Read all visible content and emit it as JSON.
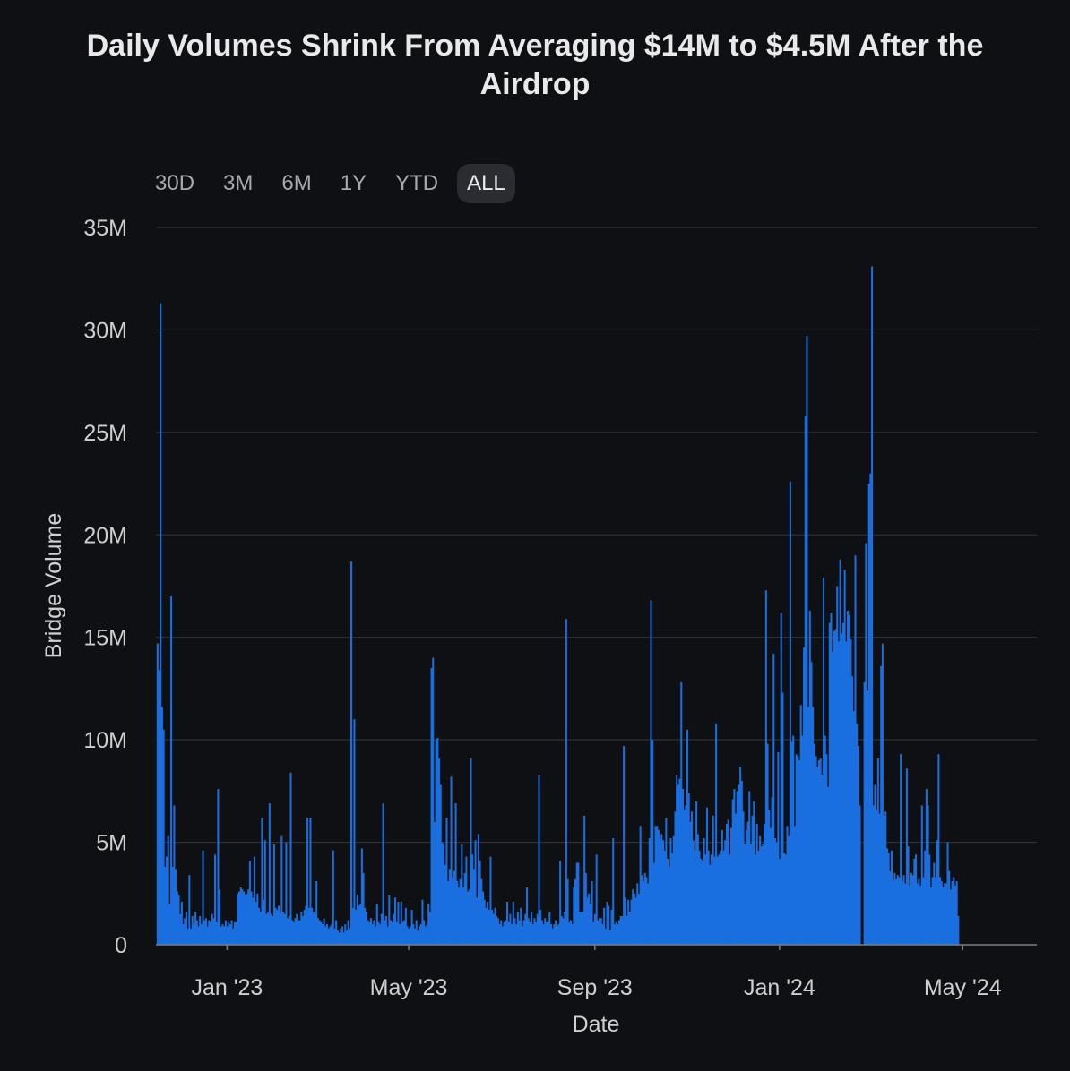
{
  "title": "Daily Volumes Shrink From Averaging $14M to $4.5M After the Airdrop",
  "range_buttons": [
    "30D",
    "3M",
    "6M",
    "1Y",
    "YTD",
    "ALL"
  ],
  "active_range": "ALL",
  "colors": {
    "background": "#0f1013",
    "bar": "#1a6fe0",
    "grid": "#2f3237"
  },
  "chart_data": {
    "type": "bar",
    "title": "Daily Volumes Shrink From Averaging $14M to $4.5M After the Airdrop",
    "xlabel": "Date",
    "ylabel": "Bridge Volume",
    "ylim": [
      0,
      35000000
    ],
    "y_ticks": [
      {
        "value": 0,
        "label": "0"
      },
      {
        "value": 5000000,
        "label": "5M"
      },
      {
        "value": 10000000,
        "label": "10M"
      },
      {
        "value": 15000000,
        "label": "15M"
      },
      {
        "value": 20000000,
        "label": "20M"
      },
      {
        "value": 25000000,
        "label": "25M"
      },
      {
        "value": 30000000,
        "label": "30M"
      },
      {
        "value": 35000000,
        "label": "35M"
      }
    ],
    "x_range": [
      "2022-11-15",
      "2024-06-19"
    ],
    "x_ticks": [
      {
        "date": "2023-01-01",
        "label": "Jan '23"
      },
      {
        "date": "2023-05-01",
        "label": "May '23"
      },
      {
        "date": "2023-09-01",
        "label": "Sep '23"
      },
      {
        "date": "2024-01-01",
        "label": "Jan '24"
      },
      {
        "date": "2024-05-01",
        "label": "May '24"
      }
    ],
    "grid": true,
    "legend": "none",
    "series": [
      {
        "start_date": "2022-11-16",
        "values_millions": [
          14.7,
          13.4,
          31.3,
          11.6,
          10.5,
          3.8,
          4.3,
          5.3,
          2.0,
          17.0,
          3.8,
          6.8,
          3.7,
          2.6,
          2.4,
          1.5,
          2.1,
          1.0,
          1.3,
          1.6,
          0.8,
          3.4,
          0.8,
          1.4,
          1.0,
          1.6,
          1.2,
          0.9,
          1.4,
          1.0,
          4.6,
          1.2,
          1.3,
          0.9,
          1.2,
          1.1,
          1.5,
          1.3,
          4.4,
          1.1,
          7.6,
          2.7,
          0.9,
          1.0,
          0.9,
          1.2,
          0.9,
          1.1,
          1.0,
          1.2,
          0.8,
          1.1,
          1.1,
          2.5,
          2.6,
          2.8,
          2.7,
          2.6,
          2.4,
          2.5,
          2.7,
          4.1,
          2.6,
          2.3,
          4.3,
          2.1,
          2.5,
          1.8,
          1.6,
          6.2,
          2.2,
          5.1,
          1.5,
          1.6,
          6.9,
          1.5,
          1.4,
          4.9,
          1.8,
          1.7,
          1.9,
          1.6,
          5.3,
          1.6,
          1.5,
          5.0,
          1.3,
          1.4,
          8.4,
          1.2,
          1.1,
          1.3,
          1.5,
          1.2,
          1.2,
          1.6,
          1.4,
          1.7,
          1.9,
          6.2,
          1.8,
          6.2,
          1.8,
          1.6,
          1.5,
          3.1,
          1.3,
          1.2,
          1.1,
          1.0,
          1.3,
          0.9,
          1.0,
          0.8,
          0.9,
          1.0,
          4.6,
          0.8,
          1.2,
          0.7,
          0.6,
          0.8,
          0.9,
          0.6,
          1.0,
          0.7,
          1.2,
          0.8,
          18.7,
          1.8,
          11.0,
          1.7,
          2.4,
          1.9,
          2.0,
          4.7,
          3.5,
          1.8,
          1.6,
          1.2,
          1.1,
          1.3,
          1.0,
          1.2,
          0.9,
          2.0,
          1.1,
          1.0,
          1.5,
          6.9,
          1.2,
          1.4,
          0.9,
          2.4,
          1.2,
          1.1,
          1.5,
          2.3,
          1.1,
          2.1,
          1.0,
          2.1,
          1.1,
          1.2,
          1.8,
          0.9,
          0.8,
          0.9,
          1.7,
          1.0,
          0.8,
          1.2,
          0.7,
          0.9,
          1.0,
          2.2,
          1.2,
          0.9,
          1.0,
          2.0,
          1.6,
          13.5,
          14.0,
          6.0,
          10.0,
          10.1,
          9.1,
          7.8,
          5.0,
          4.9,
          3.9,
          6.2,
          3.1,
          3.7,
          8.2,
          3.3,
          3.6,
          6.9,
          3.1,
          2.8,
          3.2,
          4.9,
          2.8,
          3.5,
          4.3,
          2.6,
          2.7,
          9.1,
          4.4,
          3.7,
          5.1,
          2.3,
          5.4,
          4.1,
          3.2,
          2.6,
          2.2,
          1.8,
          2.1,
          1.7,
          4.3,
          1.7,
          1.5,
          1.8,
          1.4,
          1.3,
          1.0,
          1.2,
          0.9,
          1.1,
          1.2,
          2.1,
          1.1,
          1.5,
          1.0,
          2.1,
          1.3,
          1.0,
          1.6,
          1.2,
          1.8,
          0.9,
          1.2,
          1.5,
          2.8,
          1.3,
          1.1,
          1.6,
          1.0,
          1.3,
          1.1,
          1.5,
          8.3,
          1.7,
          1.2,
          1.0,
          1.3,
          1.1,
          1.1,
          1.6,
          1.0,
          0.8,
          1.0,
          1.2,
          0.9,
          1.0,
          4.1,
          1.4,
          1.3,
          1.6,
          15.9,
          3.2,
          1.1,
          1.2,
          1.0,
          2.8,
          3.2,
          4.0,
          4.0,
          1.6,
          1.6,
          1.6,
          6.3,
          3.5,
          2.3,
          2.5,
          2.0,
          3.1,
          1.1,
          1.5,
          4.4,
          1.2,
          1.3,
          1.3,
          1.0,
          1.8,
          0.8,
          2.1,
          1.9,
          0.7,
          1.7,
          5.2,
          1.0,
          1.1,
          1.0,
          1.2,
          1.4,
          1.4,
          9.7,
          2.3,
          1.4,
          2.2,
          1.6,
          2.2,
          2.7,
          2.5,
          2.3,
          3.0,
          2.5,
          5.8,
          3.4,
          3.1,
          3.5,
          3.3,
          3.0,
          5.2,
          16.8,
          10.0,
          4.0,
          5.8,
          5.8,
          5.6,
          5.2,
          5.4,
          5.1,
          4.6,
          6.2,
          4.2,
          3.8,
          5.2,
          4.5,
          5.3,
          6.5,
          8.3,
          7.8,
          8.1,
          12.8,
          7.6,
          6.6,
          6.8,
          10.5,
          7.4,
          6.0,
          6.5,
          5.1,
          4.6,
          7.0,
          5.4,
          4.6,
          4.2,
          4.1,
          5.2,
          4.4,
          6.7,
          4.6,
          3.9,
          4.4,
          6.3,
          4.3,
          10.8,
          4.3,
          4.4,
          4.6,
          5.6,
          4.6,
          5.1,
          5.9,
          6.1,
          4.4,
          5.7,
          7.1,
          7.6,
          6.4,
          7.5,
          7.8,
          8.7,
          8.0,
          6.5,
          4.9,
          5.6,
          6.0,
          7.5,
          4.9,
          6.3,
          7.0,
          4.4,
          5.9,
          4.6,
          5.3,
          4.8,
          4.9,
          5.9,
          17.3,
          9.8,
          6.6,
          5.7,
          7.2,
          14.2,
          5.2,
          5.0,
          9.4,
          4.2,
          16.2,
          12.3,
          4.5,
          4.4,
          5.8,
          5.3,
          22.6,
          9.9,
          10.2,
          5.8,
          9.3,
          9.2,
          9.0,
          11.7,
          10.2,
          14.5,
          25.8,
          29.7,
          11.6,
          16.3,
          13.8,
          11.6,
          9.8,
          9.2,
          8.7,
          9.0,
          9.1,
          8.3,
          17.9,
          10.2,
          9.3,
          7.7,
          15.7,
          16.2,
          14.3,
          15.3,
          15.4,
          17.5,
          14.8,
          18.8,
          15.2,
          15.7,
          18.3,
          14.8,
          16.3,
          16.1,
          14.9,
          13.1,
          11.4,
          19.0,
          10.8,
          9.7,
          6.8,
          0.0,
          0.0,
          12.8,
          19.6,
          12.4,
          22.5,
          23.0,
          33.1,
          6.8,
          7.8,
          6.6,
          9.1,
          6.4,
          13.6,
          14.7,
          6.3,
          6.5,
          4.7,
          4.5,
          3.6,
          4.6,
          3.1,
          3.5,
          3.2,
          3.4,
          3.3,
          9.3,
          3.1,
          3.4,
          3.0,
          8.6,
          4.8,
          2.9,
          3.5,
          3.4,
          4.2,
          4.4,
          3.0,
          3.2,
          2.9,
          6.8,
          3.3,
          4.6,
          7.6,
          6.8,
          4.4,
          2.8,
          3.3,
          4.0,
          3.3,
          5.1,
          9.3,
          3.3,
          3.1,
          2.8,
          3.0,
          3.0,
          5.0,
          3.6,
          2.7,
          3.1,
          3.3,
          2.9,
          3.1,
          1.4
        ]
      }
    ]
  }
}
